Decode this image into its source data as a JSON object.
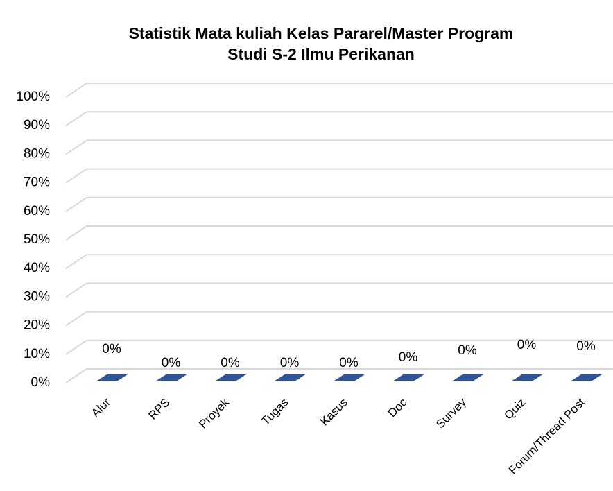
{
  "chart_data": {
    "type": "bar3d",
    "title": [
      "Statistik Mata kuliah Kelas Pararel/Master Program",
      "Studi S-2 Ilmu Perikanan"
    ],
    "categories": [
      "Alur",
      "RPS",
      "Proyek",
      "Tugas",
      "Kasus",
      "Doc",
      "Survey",
      "Quiz",
      "Forum/Thread Post"
    ],
    "values": [
      0,
      0,
      0,
      0,
      0,
      0,
      0,
      0,
      0
    ],
    "value_labels": [
      "0%",
      "0%",
      "0%",
      "0%",
      "0%",
      "0%",
      "0%",
      "0%",
      "0%"
    ],
    "color": "#2f5597",
    "ylim": [
      0,
      100
    ],
    "yticks": [
      {
        "value": 0,
        "label": "0%"
      },
      {
        "value": 10,
        "label": "10%"
      },
      {
        "value": 20,
        "label": "20%"
      },
      {
        "value": 30,
        "label": "30%"
      },
      {
        "value": 40,
        "label": "40%"
      },
      {
        "value": 50,
        "label": "50%"
      },
      {
        "value": 60,
        "label": "60%"
      },
      {
        "value": 70,
        "label": "70%"
      },
      {
        "value": 80,
        "label": "80%"
      },
      {
        "value": 90,
        "label": "90%"
      },
      {
        "value": 100,
        "label": "100%"
      }
    ],
    "grid": true
  }
}
